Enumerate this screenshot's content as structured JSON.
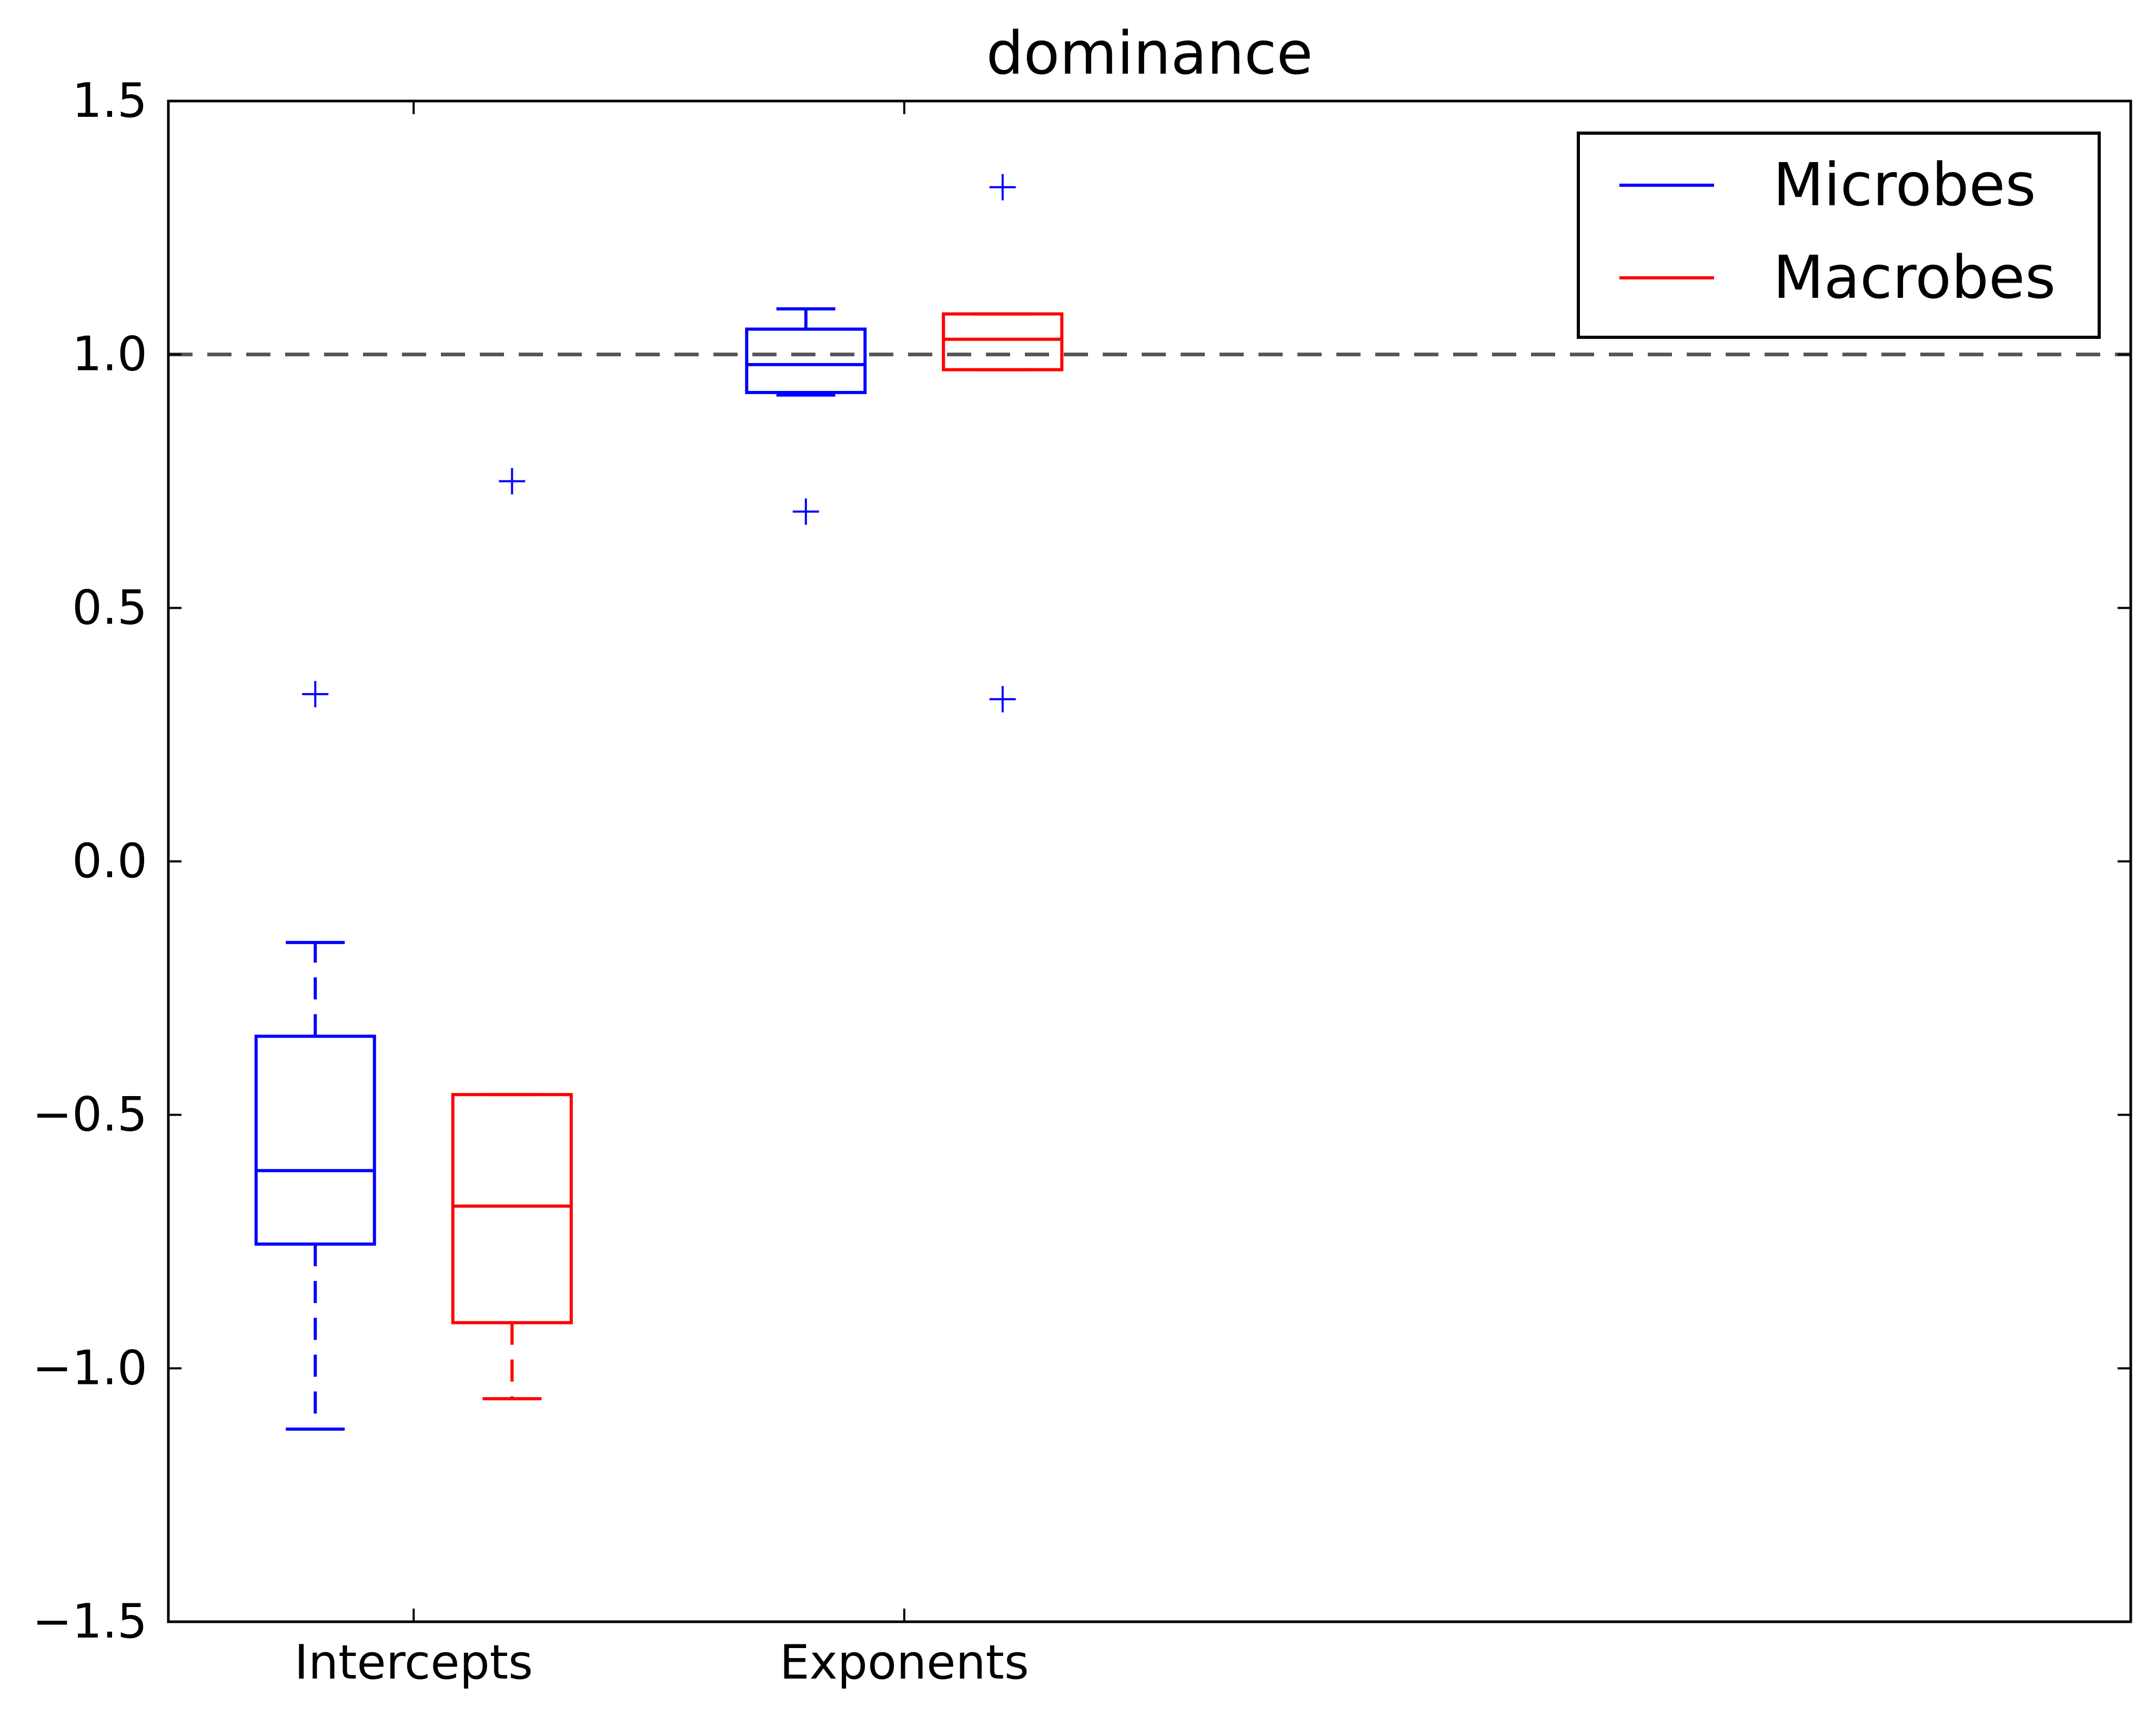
{
  "chart_data": {
    "type": "box",
    "title": "dominance",
    "xlabel": "",
    "ylabel": "",
    "ylim": [
      -1.5,
      1.5
    ],
    "y_ticks": [
      -1.5,
      -1.0,
      -0.5,
      0.0,
      0.5,
      1.0,
      1.5
    ],
    "y_tick_labels": [
      "−1.5",
      "−1.0",
      "−0.5",
      "0.0",
      "0.5",
      "1.0",
      "1.5"
    ],
    "categories": [
      "Intercepts",
      "Exponents"
    ],
    "reference_line": {
      "y": 1.0,
      "style": "dashed",
      "color": "#555555"
    },
    "legend": {
      "position": "top-right"
    },
    "grid": false,
    "series": [
      {
        "name": "Microbes",
        "color": "#0000ff",
        "boxes": [
          {
            "category": "Intercepts",
            "whisker_low": -1.12,
            "q1": -0.755,
            "median": -0.61,
            "q3": -0.345,
            "whisker_high": -0.16,
            "outliers": [
              0.33
            ]
          },
          {
            "category": "Exponents",
            "whisker_low": 0.92,
            "q1": 0.925,
            "median": 0.98,
            "q3": 1.05,
            "whisker_high": 1.09,
            "outliers": [
              0.69
            ]
          }
        ]
      },
      {
        "name": "Macrobes",
        "color": "#ff0000",
        "boxes": [
          {
            "category": "Intercepts",
            "whisker_low": -1.06,
            "q1": -0.91,
            "median": -0.68,
            "q3": -0.46,
            "whisker_high": -0.46,
            "outliers": [
              0.75
            ]
          },
          {
            "category": "Exponents",
            "whisker_low": 0.97,
            "q1": 0.97,
            "median": 1.03,
            "q3": 1.08,
            "whisker_high": 1.08,
            "outliers": [
              1.33,
              0.32
            ]
          }
        ]
      }
    ]
  }
}
